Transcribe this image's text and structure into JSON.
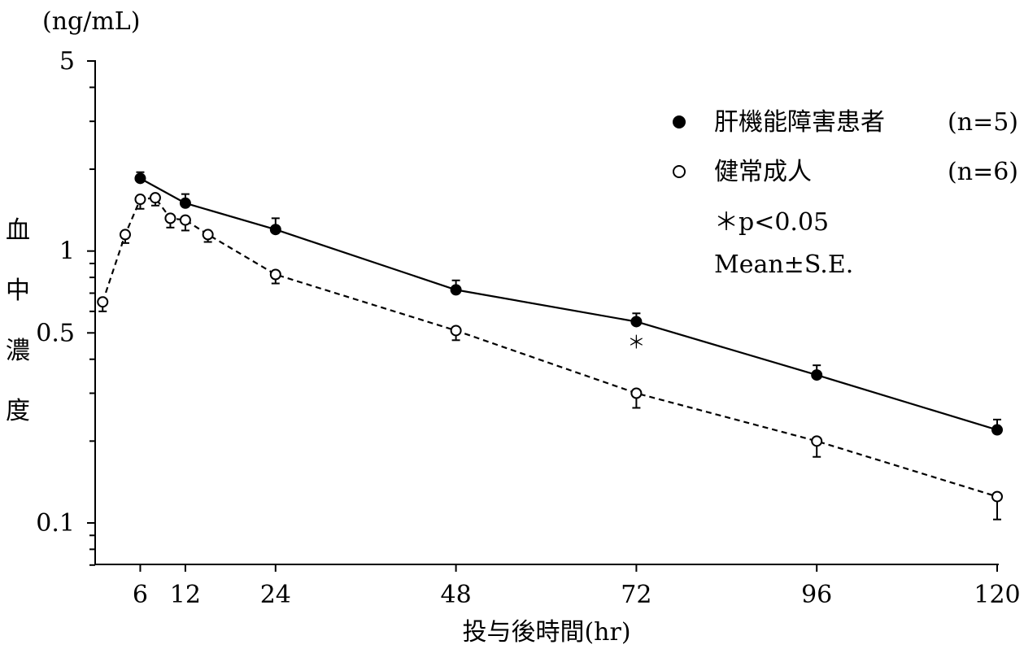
{
  "chart_data": {
    "type": "line",
    "y_unit_label": "(ng/mL)",
    "ylabel": "血中濃度",
    "xlabel": "投与後時間(hr)",
    "y_scale": "log",
    "ylim": [
      0.06,
      5
    ],
    "xlim": [
      0,
      120
    ],
    "y_ticks": [
      0.1,
      0.5,
      1,
      5
    ],
    "y_tick_labels": [
      "0.1",
      "0.5",
      "1",
      "5"
    ],
    "y_minor_ticks": [
      0.07,
      0.08,
      0.09,
      0.2,
      0.3,
      0.4,
      0.6,
      0.7,
      0.8,
      0.9,
      2,
      3,
      4
    ],
    "x_ticks": [
      6,
      12,
      24,
      48,
      72,
      96,
      120
    ],
    "x_tick_labels": [
      "6",
      "12",
      "24",
      "48",
      "72",
      "96",
      "120"
    ],
    "grid": false,
    "legend": {
      "position": "top-right",
      "entries": [
        {
          "marker": "filled-circle",
          "label": "肝機能障害患者",
          "n": "(n=5)"
        },
        {
          "marker": "open-circle",
          "label": "健常成人",
          "n": "(n=6)"
        }
      ],
      "note_significance": "＊p<0.05",
      "note_stats": "Mean±S.E."
    },
    "series": [
      {
        "marker": "filled-circle",
        "line_style": "solid",
        "x": [
          6,
          12,
          24,
          48,
          72,
          96,
          120
        ],
        "y": [
          1.85,
          1.5,
          1.2,
          0.72,
          0.55,
          0.35,
          0.22
        ],
        "err_upper": [
          0.1,
          0.12,
          0.12,
          0.06,
          0.04,
          0.03,
          0.02
        ],
        "err_lower": [
          0,
          0,
          0,
          0,
          0,
          0,
          0
        ]
      },
      {
        "marker": "open-circle",
        "line_style": "dashed",
        "x": [
          1,
          4,
          6,
          8,
          10,
          12,
          15,
          24,
          48,
          72,
          96,
          120
        ],
        "y": [
          0.65,
          1.15,
          1.55,
          1.57,
          1.32,
          1.3,
          1.15,
          0.82,
          0.51,
          0.3,
          0.2,
          0.125
        ],
        "err_upper": [
          0,
          0,
          0,
          0,
          0,
          0,
          0,
          0,
          0,
          0,
          0,
          0
        ],
        "err_lower": [
          0.05,
          0.08,
          0.12,
          0.1,
          0.1,
          0.11,
          0.07,
          0.06,
          0.04,
          0.035,
          0.025,
          0.022
        ]
      }
    ],
    "annotations": [
      {
        "text": "＊",
        "x": 72,
        "y": 0.49
      }
    ]
  }
}
